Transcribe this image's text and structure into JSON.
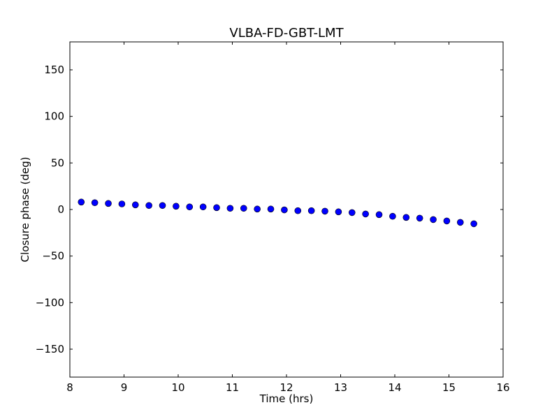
{
  "chart_data": {
    "type": "scatter",
    "title": "VLBA-FD-GBT-LMT",
    "xlabel": "Time (hrs)",
    "ylabel": "Closure phase (deg)",
    "xlim": [
      8,
      16
    ],
    "ylim": [
      -180,
      180
    ],
    "xticks": [
      8,
      9,
      10,
      11,
      12,
      13,
      14,
      15,
      16
    ],
    "yticks": [
      -150,
      -100,
      -50,
      0,
      50,
      100,
      150
    ],
    "ytick_labels": [
      "−150",
      "−100",
      "−50",
      "0",
      "50",
      "100",
      "150"
    ],
    "grid": false,
    "marker_color": "#0000ff",
    "marker_edge": "#000000",
    "x": [
      8.21,
      8.46,
      8.71,
      8.96,
      9.21,
      9.46,
      9.71,
      9.96,
      10.21,
      10.46,
      10.71,
      10.96,
      11.21,
      11.46,
      11.71,
      11.96,
      12.21,
      12.46,
      12.71,
      12.96,
      13.21,
      13.46,
      13.71,
      13.96,
      14.21,
      14.46,
      14.71,
      14.96,
      15.21,
      15.46
    ],
    "y": [
      8.0,
      7.3,
      6.5,
      6.0,
      5.0,
      4.3,
      4.3,
      3.5,
      2.8,
      2.8,
      2.0,
      1.3,
      1.3,
      0.5,
      0.5,
      -0.4,
      -1.3,
      -1.3,
      -1.8,
      -2.5,
      -3.3,
      -4.8,
      -5.5,
      -7.3,
      -8.5,
      -9.3,
      -10.8,
      -12.3,
      -13.8,
      -15.3
    ]
  }
}
